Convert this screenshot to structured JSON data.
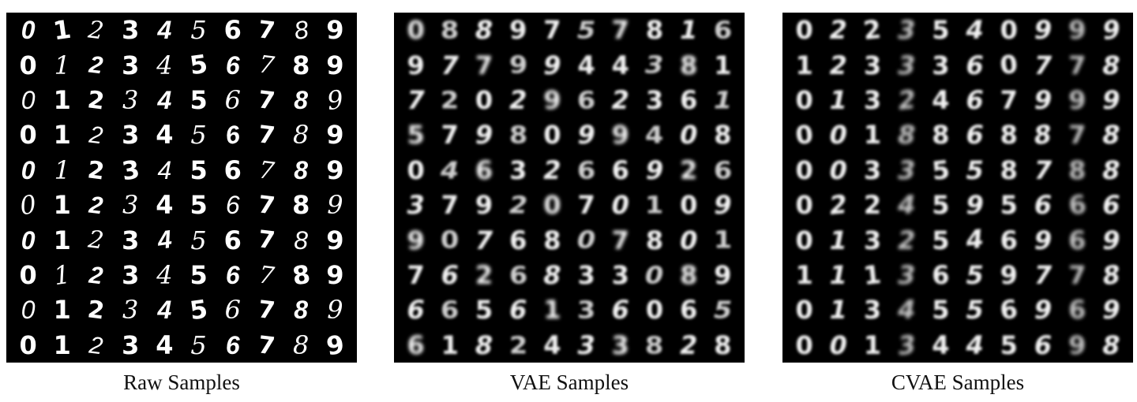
{
  "panels": [
    {
      "caption": "Raw Samples",
      "digits": [
        [
          "0",
          "1",
          "2",
          "3",
          "4",
          "5",
          "6",
          "7",
          "8",
          "9"
        ],
        [
          "0",
          "1",
          "2",
          "3",
          "4",
          "5",
          "6",
          "7",
          "8",
          "9"
        ],
        [
          "0",
          "1",
          "2",
          "3",
          "4",
          "5",
          "6",
          "7",
          "8",
          "9"
        ],
        [
          "0",
          "1",
          "2",
          "3",
          "4",
          "5",
          "6",
          "7",
          "8",
          "9"
        ],
        [
          "0",
          "1",
          "2",
          "3",
          "4",
          "5",
          "6",
          "7",
          "8",
          "9"
        ],
        [
          "0",
          "1",
          "2",
          "3",
          "4",
          "5",
          "6",
          "7",
          "8",
          "9"
        ],
        [
          "0",
          "1",
          "2",
          "3",
          "4",
          "5",
          "6",
          "7",
          "8",
          "9"
        ],
        [
          "0",
          "1",
          "2",
          "3",
          "4",
          "5",
          "6",
          "7",
          "8",
          "9"
        ],
        [
          "0",
          "1",
          "2",
          "3",
          "4",
          "5",
          "6",
          "7",
          "8",
          "9"
        ],
        [
          "0",
          "1",
          "2",
          "3",
          "4",
          "5",
          "6",
          "7",
          "8",
          "9"
        ]
      ]
    },
    {
      "caption": "VAE Samples",
      "digits": [
        [
          "0",
          "8",
          "8",
          "9",
          "7",
          "5",
          "7",
          "8",
          "1",
          "6"
        ],
        [
          "9",
          "7",
          "7",
          "9",
          "9",
          "4",
          "4",
          "3",
          "8",
          "1"
        ],
        [
          "7",
          "2",
          "0",
          "2",
          "9",
          "6",
          "2",
          "3",
          "6",
          "1"
        ],
        [
          "5",
          "7",
          "9",
          "8",
          "0",
          "9",
          "9",
          "4",
          "0",
          "8"
        ],
        [
          "0",
          "4",
          "6",
          "3",
          "2",
          "6",
          "6",
          "9",
          "2",
          "6"
        ],
        [
          "3",
          "7",
          "9",
          "2",
          "0",
          "7",
          "0",
          "1",
          "0",
          "9"
        ],
        [
          "9",
          "0",
          "7",
          "6",
          "8",
          "0",
          "7",
          "8",
          "0",
          "1"
        ],
        [
          "7",
          "6",
          "2",
          "6",
          "8",
          "3",
          "3",
          "0",
          "8",
          "9"
        ],
        [
          "6",
          "6",
          "5",
          "6",
          "1",
          "3",
          "6",
          "0",
          "6",
          "5"
        ],
        [
          "6",
          "1",
          "8",
          "2",
          "4",
          "3",
          "3",
          "8",
          "2",
          "8"
        ]
      ]
    },
    {
      "caption": "CVAE Samples",
      "digits": [
        [
          "0",
          "2",
          "2",
          "3",
          "5",
          "4",
          "0",
          "9",
          "9",
          "9"
        ],
        [
          "1",
          "2",
          "3",
          "3",
          "3",
          "6",
          "0",
          "7",
          "7",
          "8"
        ],
        [
          "0",
          "1",
          "3",
          "2",
          "4",
          "6",
          "7",
          "9",
          "9",
          "9"
        ],
        [
          "0",
          "0",
          "1",
          "8",
          "8",
          "6",
          "8",
          "8",
          "7",
          "8"
        ],
        [
          "0",
          "0",
          "3",
          "3",
          "5",
          "5",
          "8",
          "7",
          "8",
          "8"
        ],
        [
          "0",
          "2",
          "2",
          "4",
          "5",
          "9",
          "5",
          "6",
          "6",
          "6"
        ],
        [
          "0",
          "1",
          "3",
          "2",
          "5",
          "4",
          "6",
          "9",
          "6",
          "9"
        ],
        [
          "1",
          "1",
          "1",
          "3",
          "6",
          "5",
          "9",
          "7",
          "7",
          "8"
        ],
        [
          "0",
          "1",
          "3",
          "4",
          "5",
          "5",
          "6",
          "9",
          "6",
          "9"
        ],
        [
          "0",
          "0",
          "1",
          "3",
          "4",
          "4",
          "5",
          "6",
          "9",
          "8"
        ]
      ]
    }
  ]
}
